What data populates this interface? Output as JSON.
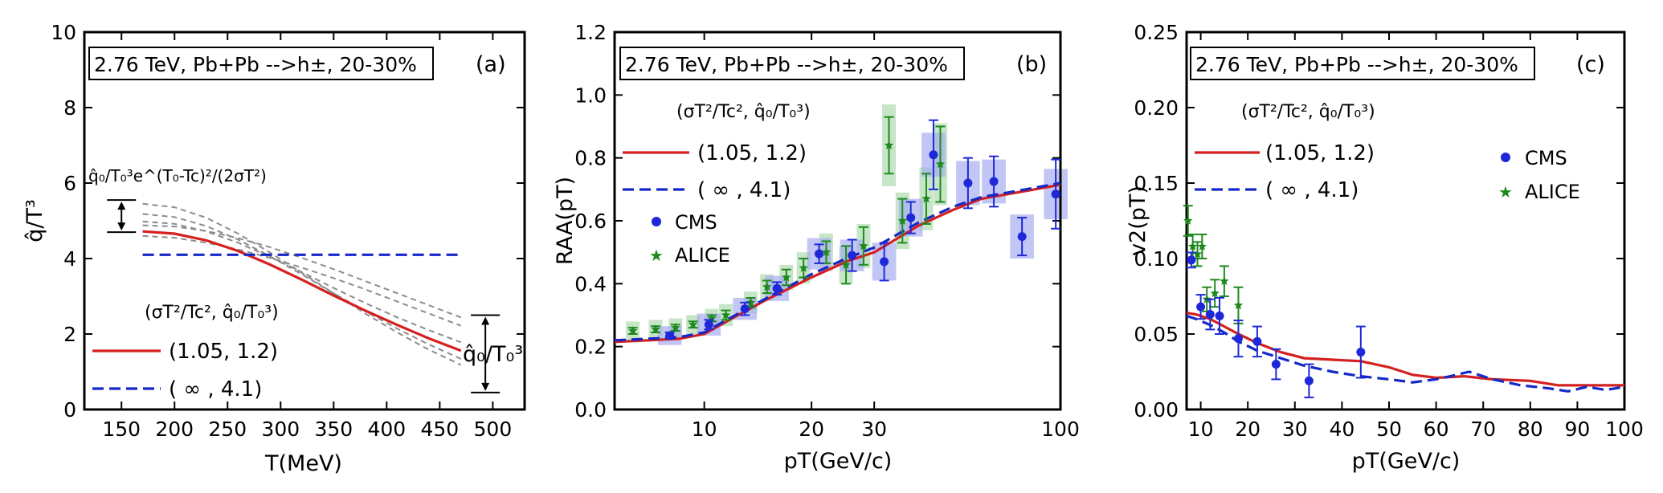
{
  "colors": {
    "red": "#d42020",
    "blue": "#1428c8",
    "blue_point": "#1e28d8",
    "green": "#1e8a1e",
    "grey": "#8c8c8c",
    "band_blue": "#a8aef0",
    "band_green": "#b4dcb4"
  },
  "chart_data": [
    {
      "type": "line",
      "panel_label": "(a)",
      "title": "2.76 TeV, Pb+Pb -->h±, 20-30%",
      "xlabel": "T(MeV)",
      "ylabel": "q̂/T³",
      "xlim": [
        115,
        530
      ],
      "ylim": [
        0,
        10
      ],
      "xticks": [
        150,
        200,
        250,
        300,
        350,
        400,
        450,
        500
      ],
      "yticks": [
        0,
        2,
        4,
        6,
        8,
        10
      ],
      "formula_label": "q̂₀/T₀³e^(T₀-Tc)²/(2σT²)",
      "right_arrow_label": "q̂₀/T₀³",
      "legend_header": "(σT²/Tc², q̂₀/T₀³)",
      "series": [
        {
          "name": "(1.05, 1.2)",
          "style": "solid-red",
          "x": [
            170,
            200,
            230,
            260,
            290,
            320,
            350,
            380,
            410,
            440,
            470
          ],
          "y": [
            4.72,
            4.66,
            4.48,
            4.2,
            3.84,
            3.44,
            3.02,
            2.62,
            2.24,
            1.88,
            1.56
          ]
        },
        {
          "name": "( ∞ , 4.1)",
          "style": "dashed-blue",
          "x": [
            170,
            470
          ],
          "y": [
            4.1,
            4.1
          ]
        }
      ],
      "grey_curves": [
        {
          "x": [
            170,
            200,
            230,
            260,
            290,
            320,
            350,
            380,
            410,
            440,
            470
          ],
          "y": [
            5.45,
            5.36,
            5.08,
            4.66,
            4.16,
            3.62,
            3.08,
            2.54,
            2.04,
            1.58,
            1.18
          ]
        },
        {
          "x": [
            170,
            200,
            230,
            260,
            290,
            320,
            350,
            380,
            410,
            440,
            470
          ],
          "y": [
            5.18,
            5.1,
            4.86,
            4.5,
            4.06,
            3.58,
            3.08,
            2.6,
            2.14,
            1.72,
            1.34
          ]
        },
        {
          "x": [
            170,
            200,
            230,
            260,
            290,
            320,
            350,
            380,
            410,
            440,
            470
          ],
          "y": [
            4.98,
            4.92,
            4.72,
            4.42,
            4.04,
            3.64,
            3.22,
            2.82,
            2.44,
            2.1,
            1.78
          ]
        },
        {
          "x": [
            170,
            200,
            230,
            260,
            290,
            320,
            350,
            380,
            410,
            440,
            470
          ],
          "y": [
            4.88,
            4.85,
            4.73,
            4.54,
            4.3,
            4.02,
            3.72,
            3.4,
            3.08,
            2.76,
            2.44
          ]
        },
        {
          "x": [
            170,
            200,
            230,
            260,
            290,
            320,
            350,
            380,
            410,
            440,
            470
          ],
          "y": [
            4.6,
            4.55,
            4.42,
            4.24,
            4.02,
            3.76,
            3.48,
            3.18,
            2.86,
            2.54,
            2.22
          ]
        }
      ],
      "arrows": [
        {
          "x": 150,
          "y_top": 5.55,
          "y_bottom": 4.7
        },
        {
          "x": 493,
          "y_top": 2.5,
          "y_bottom": 0.45
        }
      ]
    },
    {
      "type": "scatter",
      "panel_label": "(b)",
      "title": "2.76 TeV, Pb+Pb -->h±, 20-30%",
      "xlabel": "pT(GeV/c)",
      "ylabel": "RAA(pT)",
      "xscale": "log",
      "xlim": [
        5.6,
        100
      ],
      "ylim": [
        0,
        1.2
      ],
      "xticks": [
        10,
        20,
        30,
        100
      ],
      "yticks": [
        0.0,
        0.2,
        0.4,
        0.6,
        0.8,
        1.0,
        1.2
      ],
      "legend_header": "(σT²/Tc², q̂₀/T₀³)",
      "series": [
        {
          "name": "(1.05, 1.2)",
          "style": "solid-red",
          "x": [
            5.6,
            7,
            8.5,
            10,
            12,
            15,
            20,
            25,
            30,
            40,
            50,
            60,
            80,
            100
          ],
          "y": [
            0.215,
            0.22,
            0.225,
            0.24,
            0.29,
            0.35,
            0.42,
            0.47,
            0.5,
            0.585,
            0.635,
            0.67,
            0.695,
            0.715
          ]
        },
        {
          "name": "( ∞ , 4.1)",
          "style": "dashed-blue",
          "x": [
            5.6,
            7,
            8.5,
            10,
            12,
            15,
            20,
            25,
            30,
            40,
            50,
            60,
            80,
            100
          ],
          "y": [
            0.22,
            0.225,
            0.23,
            0.245,
            0.295,
            0.355,
            0.43,
            0.48,
            0.515,
            0.595,
            0.645,
            0.675,
            0.7,
            0.72
          ]
        }
      ],
      "cms": [
        {
          "x": 8,
          "y": 0.235,
          "err": 0.01,
          "syst": 0.03
        },
        {
          "x": 10.3,
          "y": 0.27,
          "err": 0.015,
          "syst": 0.035
        },
        {
          "x": 13,
          "y": 0.32,
          "err": 0.02,
          "syst": 0.035
        },
        {
          "x": 16,
          "y": 0.385,
          "err": 0.02,
          "syst": 0.04
        },
        {
          "x": 21,
          "y": 0.495,
          "err": 0.03,
          "syst": 0.05
        },
        {
          "x": 26,
          "y": 0.49,
          "err": 0.05,
          "syst": 0.05
        },
        {
          "x": 32,
          "y": 0.47,
          "err": 0.06,
          "syst": 0.06
        },
        {
          "x": 38,
          "y": 0.61,
          "err": 0.05,
          "syst": 0.06
        },
        {
          "x": 44,
          "y": 0.81,
          "err": 0.11,
          "syst": 0.07
        },
        {
          "x": 55,
          "y": 0.72,
          "err": 0.08,
          "syst": 0.07
        },
        {
          "x": 65,
          "y": 0.725,
          "err": 0.08,
          "syst": 0.07
        },
        {
          "x": 78,
          "y": 0.55,
          "err": 0.06,
          "syst": 0.07
        },
        {
          "x": 97,
          "y": 0.685,
          "err": 0.11,
          "syst": 0.08
        }
      ],
      "alice": [
        {
          "x": 6.3,
          "y": 0.25,
          "err": 0.01,
          "syst": 0.03
        },
        {
          "x": 7.3,
          "y": 0.255,
          "err": 0.01,
          "syst": 0.03
        },
        {
          "x": 8.3,
          "y": 0.26,
          "err": 0.01,
          "syst": 0.03
        },
        {
          "x": 9.3,
          "y": 0.27,
          "err": 0.01,
          "syst": 0.03
        },
        {
          "x": 10.5,
          "y": 0.29,
          "err": 0.01,
          "syst": 0.03
        },
        {
          "x": 11.5,
          "y": 0.3,
          "err": 0.015,
          "syst": 0.035
        },
        {
          "x": 13.5,
          "y": 0.34,
          "err": 0.015,
          "syst": 0.035
        },
        {
          "x": 15,
          "y": 0.39,
          "err": 0.02,
          "syst": 0.04
        },
        {
          "x": 17,
          "y": 0.42,
          "err": 0.025,
          "syst": 0.04
        },
        {
          "x": 19,
          "y": 0.45,
          "err": 0.03,
          "syst": 0.05
        },
        {
          "x": 22,
          "y": 0.5,
          "err": 0.035,
          "syst": 0.06
        },
        {
          "x": 25,
          "y": 0.46,
          "err": 0.06,
          "syst": 0.06
        },
        {
          "x": 28,
          "y": 0.52,
          "err": 0.06,
          "syst": 0.07
        },
        {
          "x": 33,
          "y": 0.84,
          "err": 0.09,
          "syst": 0.13
        },
        {
          "x": 36,
          "y": 0.6,
          "err": 0.07,
          "syst": 0.09
        },
        {
          "x": 42,
          "y": 0.67,
          "err": 0.08,
          "syst": 0.1
        },
        {
          "x": 46,
          "y": 0.78,
          "err": 0.12,
          "syst": 0.13
        }
      ],
      "legend": [
        "CMS",
        "ALICE"
      ]
    },
    {
      "type": "scatter",
      "panel_label": "(c)",
      "title": "2.76 TeV, Pb+Pb -->h±, 20-30%",
      "xlabel": "pT(GeV/c)",
      "ylabel": "v2(pT)",
      "xlim": [
        7,
        100
      ],
      "ylim": [
        0,
        0.25
      ],
      "xticks": [
        10,
        20,
        30,
        40,
        50,
        60,
        70,
        80,
        90,
        100
      ],
      "yticks": [
        0.0,
        0.05,
        0.1,
        0.15,
        0.2,
        0.25
      ],
      "legend_header": "(σT²/Tc², q̂₀/T₀³)",
      "series": [
        {
          "name": "(1.05, 1.2)",
          "style": "solid-red",
          "x": [
            7,
            9,
            12,
            15,
            18,
            22,
            27,
            32,
            38,
            44,
            50,
            55,
            60,
            66,
            72,
            80,
            86,
            92,
            100
          ],
          "y": [
            0.064,
            0.063,
            0.06,
            0.055,
            0.05,
            0.044,
            0.038,
            0.034,
            0.033,
            0.032,
            0.028,
            0.023,
            0.021,
            0.022,
            0.02,
            0.019,
            0.016,
            0.016,
            0.016
          ]
        },
        {
          "name": "( ∞ , 4.1)",
          "style": "dashed-blue",
          "x": [
            7,
            9,
            12,
            15,
            18,
            22,
            27,
            32,
            38,
            44,
            50,
            55,
            60,
            63,
            67,
            72,
            78,
            84,
            88,
            92,
            96,
            100
          ],
          "y": [
            0.062,
            0.06,
            0.056,
            0.051,
            0.045,
            0.039,
            0.034,
            0.029,
            0.025,
            0.022,
            0.02,
            0.018,
            0.02,
            0.022,
            0.025,
            0.02,
            0.016,
            0.014,
            0.012,
            0.015,
            0.013,
            0.015
          ]
        }
      ],
      "cms": [
        {
          "x": 8,
          "y": 0.099,
          "err": 0.005
        },
        {
          "x": 10,
          "y": 0.068,
          "err": 0.008
        },
        {
          "x": 12,
          "y": 0.063,
          "err": 0.01
        },
        {
          "x": 14,
          "y": 0.062,
          "err": 0.012
        },
        {
          "x": 18,
          "y": 0.047,
          "err": 0.012
        },
        {
          "x": 22,
          "y": 0.045,
          "err": 0.01
        },
        {
          "x": 26,
          "y": 0.03,
          "err": 0.01
        },
        {
          "x": 33,
          "y": 0.019,
          "err": 0.011
        },
        {
          "x": 44,
          "y": 0.038,
          "err": 0.017
        }
      ],
      "alice": [
        {
          "x": 7.3,
          "y": 0.125,
          "err": 0.01
        },
        {
          "x": 8.3,
          "y": 0.108,
          "err": 0.008
        },
        {
          "x": 9.3,
          "y": 0.103,
          "err": 0.008
        },
        {
          "x": 10.3,
          "y": 0.108,
          "err": 0.008
        },
        {
          "x": 11.3,
          "y": 0.073,
          "err": 0.008
        },
        {
          "x": 13,
          "y": 0.077,
          "err": 0.009
        },
        {
          "x": 15,
          "y": 0.085,
          "err": 0.01
        },
        {
          "x": 18,
          "y": 0.069,
          "err": 0.012
        }
      ],
      "legend": [
        "CMS",
        "ALICE"
      ]
    }
  ]
}
